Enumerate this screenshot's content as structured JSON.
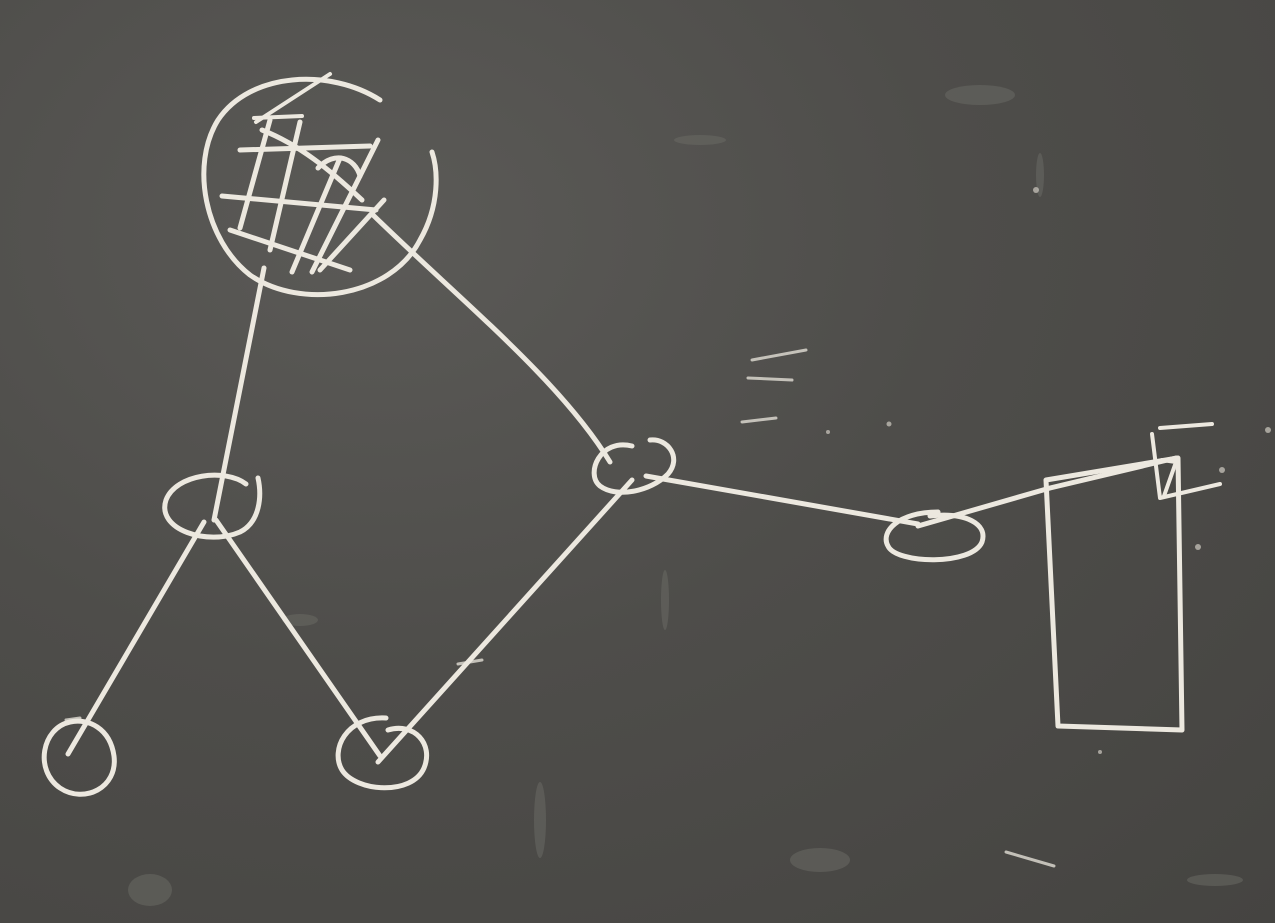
{
  "board": {
    "background_color": "#4f4e4b",
    "chalk_color": "#ece8df"
  },
  "diagram": {
    "nodes": [
      {
        "id": "hatched-circle",
        "shape": "circle",
        "fill": "cross-hatched"
      },
      {
        "id": "left-junction",
        "shape": "circle"
      },
      {
        "id": "center-junction",
        "shape": "circle"
      },
      {
        "id": "right-node",
        "shape": "ellipse"
      },
      {
        "id": "bottom-left-node",
        "shape": "circle"
      },
      {
        "id": "bottom-middle-node",
        "shape": "circle"
      },
      {
        "id": "wall",
        "shape": "rectangle"
      }
    ],
    "edges": [
      {
        "from": "hatched-circle",
        "to": "left-junction"
      },
      {
        "from": "hatched-circle",
        "to": "center-junction"
      },
      {
        "from": "left-junction",
        "to": "bottom-left-node"
      },
      {
        "from": "left-junction",
        "to": "bottom-middle-node"
      },
      {
        "from": "center-junction",
        "to": "bottom-middle-node"
      },
      {
        "from": "center-junction",
        "to": "right-node"
      },
      {
        "from": "right-node",
        "to": "wall"
      }
    ]
  }
}
